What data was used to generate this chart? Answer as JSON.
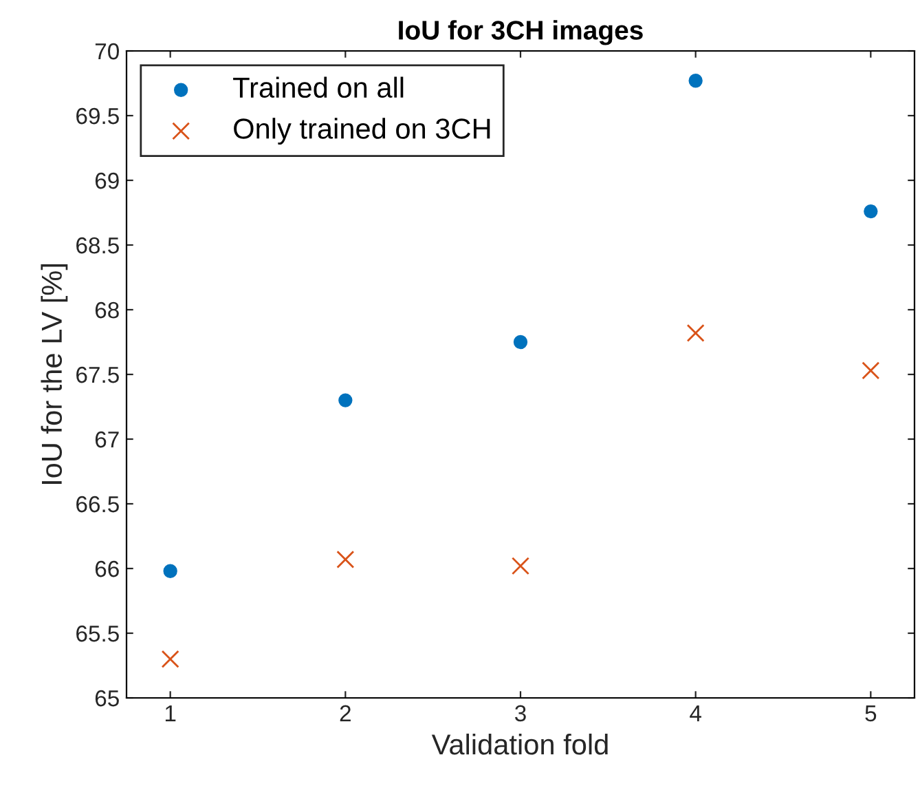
{
  "chart_data": {
    "type": "scatter",
    "title": "IoU for 3CH images",
    "xlabel": "Validation fold",
    "ylabel": "IoU for the LV [%]",
    "x": [
      1,
      2,
      3,
      4,
      5
    ],
    "series": [
      {
        "name": "Trained on all",
        "color": "#0072bd",
        "marker": "circle",
        "values": [
          65.98,
          67.3,
          67.75,
          69.77,
          68.76
        ]
      },
      {
        "name": "Only trained on 3CH",
        "color": "#d95319",
        "marker": "cross",
        "values": [
          65.3,
          66.07,
          66.02,
          67.82,
          67.53
        ]
      }
    ],
    "xlim": [
      0.75,
      5.25
    ],
    "xticks": [
      1,
      2,
      3,
      4,
      5
    ],
    "ylim": [
      65,
      70
    ],
    "yticks": [
      65,
      65.5,
      66,
      66.5,
      67,
      67.5,
      68,
      68.5,
      69,
      69.5,
      70
    ],
    "grid": false,
    "legend": "top left"
  }
}
